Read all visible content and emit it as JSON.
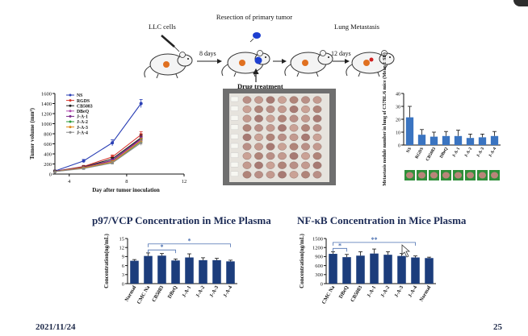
{
  "slide": {
    "date": "2021/11/24",
    "page_number": "25"
  },
  "schematic": {
    "step1_label": "LLC cells",
    "step2_label": "8 days",
    "step3_label": "Resection of primary tumor",
    "step4_label": "12 days",
    "step5_label": "Lung Metastasis",
    "treatment_label": "Drug treatment"
  },
  "colors": {
    "bar_blue": "#3a74c1",
    "bar_navy": "#1c3d7c",
    "photo_bg": "#6f6f6f"
  },
  "charts": {
    "tumor_growth": {
      "type": "line",
      "ylabel": "Tumor volume (mm³)",
      "xlabel": "Day after tumor inoculation",
      "xlim": [
        3,
        12
      ],
      "ylim": [
        0,
        1600
      ]
    },
    "metastasis": {
      "type": "bar",
      "ylabel": "Metastasis nodule number in lung of C57BL/6 mice (Mean ± SD)",
      "ylim": [
        0,
        40
      ]
    },
    "p97": {
      "type": "bar",
      "title": "p97/VCP Concentration in Mice Plasma",
      "ylabel": "Concentration(ng/mL)",
      "ylim": [
        0,
        15
      ]
    },
    "nfkb": {
      "type": "bar",
      "title": "NF-κB Concentration in Mice Plasma",
      "ylabel": "Concentration(ng/mL)",
      "ylim": [
        0,
        1500
      ]
    }
  },
  "chart_data": [
    {
      "type": "line",
      "xlabel": "Day after tumor inoculation",
      "ylabel": "Tumor volume (mm³)",
      "xlim": [
        3,
        12
      ],
      "ylim": [
        0,
        1600
      ],
      "xticks": [
        4,
        8,
        12
      ],
      "yticks": [
        0,
        200,
        400,
        600,
        800,
        1000,
        1200,
        1400,
        1600
      ],
      "x": [
        3,
        5,
        7,
        9
      ],
      "legend": "top-left",
      "series": [
        {
          "name": "NS",
          "color": "#2a3fb5",
          "marker": "circle",
          "values": [
            60,
            260,
            620,
            1400
          ],
          "errors": [
            0,
            30,
            60,
            80
          ]
        },
        {
          "name": "RGDS",
          "color": "#d6332a",
          "marker": "square",
          "values": [
            55,
            150,
            340,
            780
          ],
          "errors": [
            0,
            20,
            40,
            60
          ]
        },
        {
          "name": "CB5083",
          "color": "#222222",
          "marker": "square",
          "values": [
            55,
            140,
            300,
            720
          ],
          "errors": [
            0,
            20,
            30,
            60
          ]
        },
        {
          "name": "DBeQ",
          "color": "#b04cb0",
          "marker": "triangle",
          "values": [
            50,
            130,
            260,
            680
          ],
          "errors": [
            0,
            15,
            30,
            50
          ]
        },
        {
          "name": "J-A-1",
          "color": "#7a2a8a",
          "marker": "triangle",
          "values": [
            55,
            135,
            270,
            700
          ],
          "errors": [
            0,
            15,
            30,
            50
          ]
        },
        {
          "name": "J-A-2",
          "color": "#2a9a3a",
          "marker": "triangle",
          "values": [
            50,
            120,
            230,
            650
          ],
          "errors": [
            0,
            15,
            25,
            50
          ]
        },
        {
          "name": "J-A-3",
          "color": "#e08a1a",
          "marker": "triangle",
          "values": [
            50,
            125,
            240,
            660
          ],
          "errors": [
            0,
            15,
            25,
            50
          ]
        },
        {
          "name": "J-A-4",
          "color": "#888888",
          "marker": "triangle",
          "values": [
            48,
            110,
            220,
            620
          ],
          "errors": [
            0,
            15,
            25,
            50
          ]
        }
      ]
    },
    {
      "type": "bar",
      "ylabel": "Metastasis nodule number in lung of C57BL/6 mice (Mean ± SD)",
      "ylim": [
        0,
        40
      ],
      "yticks": [
        0,
        10,
        20,
        30,
        40
      ],
      "categories": [
        "NS",
        "RGDS",
        "CB5083",
        "DBeQ",
        "J-A-1",
        "J-A-2",
        "J-A-3",
        "J-A-4"
      ],
      "values": [
        21.5,
        8,
        6.5,
        7,
        7,
        5.5,
        6,
        7
      ],
      "errors": [
        8.5,
        4,
        3.5,
        3.5,
        4.5,
        3,
        2.5,
        3.5
      ]
    },
    {
      "type": "bar",
      "title": "p97/VCP Concentration in Mice Plasma",
      "ylabel": "Concentration(ng/mL)",
      "ylim": [
        0,
        15
      ],
      "yticks": [
        0,
        3,
        6,
        9,
        12,
        15
      ],
      "categories": [
        "Normal",
        "CMC Na",
        "CB5083",
        "DBeQ",
        "J-A-1",
        "J-A-2",
        "J-A-3",
        "J-A-4"
      ],
      "values": [
        7.6,
        9.2,
        9.3,
        7.7,
        8.7,
        7.8,
        7.8,
        7.4
      ],
      "errors": [
        0.4,
        1.0,
        0.7,
        0.5,
        1.2,
        0.8,
        0.6,
        0.4
      ],
      "annotations": [
        {
          "text": "*",
          "from": "CMC Na",
          "to": "DBeQ",
          "level": 11.2
        },
        {
          "text": "*",
          "from": "CMC Na",
          "to": "J-A-4",
          "level": 13.2
        }
      ]
    },
    {
      "type": "bar",
      "title": "NF-κB Concentration in Mice Plasma",
      "ylabel": "Concentration(ng/mL)",
      "ylim": [
        0,
        1500
      ],
      "yticks": [
        0,
        300,
        600,
        900,
        1200,
        1500
      ],
      "categories": [
        "CMC Na",
        "DBeQ",
        "CB5083",
        "J-A-1",
        "J-A-2",
        "J-A-3",
        "J-A-4",
        "Normal"
      ],
      "values": [
        990,
        880,
        930,
        1000,
        960,
        920,
        870,
        850
      ],
      "errors": [
        70,
        90,
        130,
        150,
        100,
        80,
        50,
        30
      ],
      "annotations": [
        {
          "text": "*",
          "from": "CMC Na",
          "to": "DBeQ",
          "level": 1170
        },
        {
          "text": "**",
          "from": "CMC Na",
          "to": "J-A-4",
          "level": 1370
        }
      ]
    }
  ]
}
